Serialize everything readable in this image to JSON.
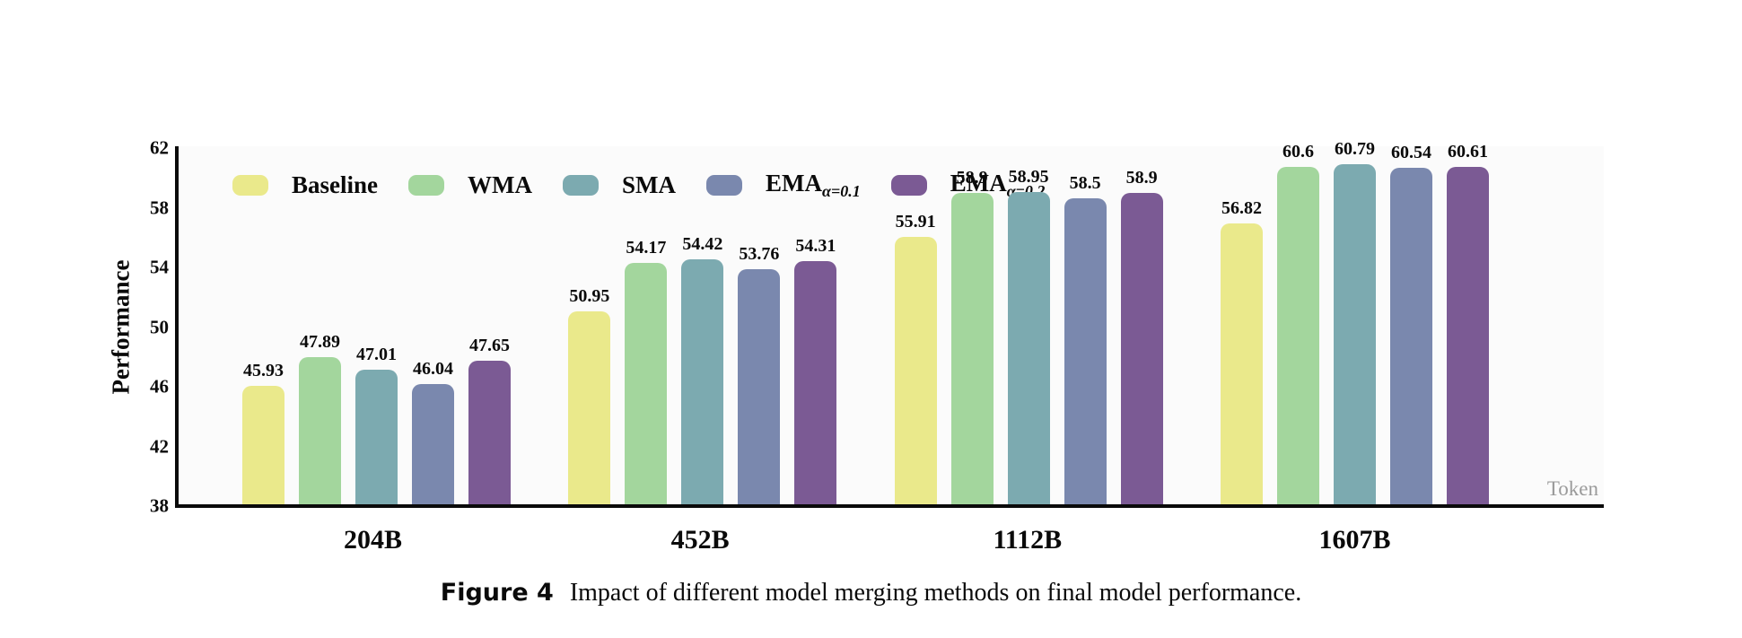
{
  "figure": {
    "caption_label": "Figure 4",
    "caption_text": "Impact of different model merging methods on final model performance."
  },
  "chart_data": {
    "type": "bar",
    "title": "",
    "xlabel": "Token",
    "ylabel": "Performance",
    "ylim": [
      38,
      62
    ],
    "yticks": [
      38,
      42,
      46,
      50,
      54,
      58,
      62
    ],
    "grid": false,
    "legend_position": "top-left",
    "categories": [
      "204B",
      "452B",
      "1112B",
      "1607B"
    ],
    "series": [
      {
        "name": "Baseline",
        "sub": "",
        "color": "#eae98b",
        "values": [
          45.93,
          50.95,
          55.91,
          56.82
        ]
      },
      {
        "name": "WMA",
        "sub": "",
        "color": "#a3d69d",
        "values": [
          47.89,
          54.17,
          58.9,
          60.6
        ]
      },
      {
        "name": "SMA",
        "sub": "",
        "color": "#7caab0",
        "values": [
          47.01,
          54.42,
          58.95,
          60.79
        ]
      },
      {
        "name": "EMA",
        "sub": "α=0.1",
        "color": "#7a88ae",
        "values": [
          46.04,
          53.76,
          58.5,
          60.54
        ]
      },
      {
        "name": "EMA",
        "sub": "α=0.2",
        "color": "#7b5a94",
        "values": [
          47.65,
          54.31,
          58.9,
          60.61
        ]
      }
    ]
  }
}
